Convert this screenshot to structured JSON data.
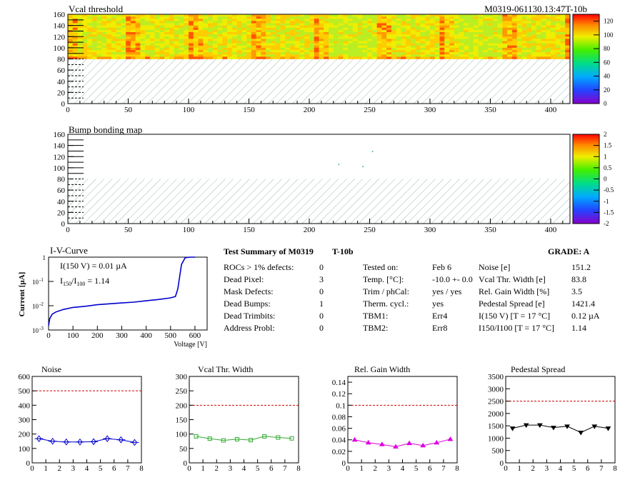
{
  "header": {
    "vcal_title": "Vcal threshold",
    "module_id": "M0319-061130.13:47T-10b",
    "bump_title": "Bump bonding map"
  },
  "maps": {
    "x_ticks": [
      "0",
      "50",
      "100",
      "150",
      "200",
      "250",
      "300",
      "350",
      "400"
    ],
    "y_ticks": [
      "0",
      "20",
      "40",
      "60",
      "80",
      "100",
      "120",
      "140",
      "160"
    ],
    "vcal_palette_ticks": [
      "0",
      "20",
      "40",
      "60",
      "80",
      "100",
      "120"
    ],
    "bump_palette_ticks": [
      "-2",
      "-1.5",
      "-1",
      "-0.5",
      "0",
      "0.5",
      "1",
      "1.5",
      "2"
    ],
    "vcal_map": {
      "xrange": [
        0,
        416
      ],
      "yrange": [
        0,
        160
      ],
      "filled_y": [
        80,
        160
      ],
      "hatched_y": [
        0,
        80
      ],
      "roc_width": 52,
      "zrange": [
        0,
        130
      ]
    },
    "bump_map": {
      "xrange": [
        0,
        416
      ],
      "yrange": [
        0,
        160
      ],
      "filled_y": [
        80,
        160
      ],
      "hatched_y": [
        0,
        80
      ],
      "points": [
        [
          224,
          107
        ],
        [
          244,
          103
        ],
        [
          252,
          130
        ]
      ]
    }
  },
  "iv": {
    "title": "I-V-Curve",
    "i150": "I(150 V) = 0.01 µA",
    "ratio_label": "I",
    "ratio_sub1": "150",
    "ratio_sep": "/I",
    "ratio_sub2": "100",
    "ratio_value": "=  1.14",
    "ylabel": "Current [µA]",
    "xlabel": "Voltage [V]",
    "x_ticks": [
      "0",
      "100",
      "200",
      "300",
      "400",
      "500",
      "600"
    ],
    "y_ticks": [
      "1",
      "10",
      "10",
      "10"
    ],
    "y_exp": [
      "",
      "-1",
      "-2",
      "-3"
    ],
    "chart_data": {
      "type": "line",
      "x": [
        0,
        5,
        15,
        30,
        60,
        100,
        150,
        200,
        250,
        300,
        350,
        400,
        450,
        500,
        520,
        530,
        545,
        560,
        580,
        600
      ],
      "y": [
        0.0015,
        0.003,
        0.0045,
        0.0055,
        0.007,
        0.0085,
        0.0095,
        0.011,
        0.012,
        0.013,
        0.014,
        0.016,
        0.018,
        0.021,
        0.024,
        0.05,
        0.5,
        0.95,
        1,
        1
      ],
      "xlim": [
        0,
        650
      ],
      "ylim": [
        0.001,
        1
      ],
      "yscale": "log"
    }
  },
  "summary": {
    "title": "Test Summary of M0319",
    "tag": "T-10b",
    "grade": "GRADE:  A",
    "left": [
      {
        "label": "ROCs > 1% defects:",
        "value": "0"
      },
      {
        "label": "Dead Pixel:",
        "value": "3"
      },
      {
        "label": "Mask Defects:",
        "value": "0"
      },
      {
        "label": "Dead Bumps:",
        "value": "1"
      },
      {
        "label": "Dead Trimbits:",
        "value": "0"
      },
      {
        "label": "Address Probl:",
        "value": "0"
      }
    ],
    "mid": [
      {
        "label": "Tested on:",
        "value": "Feb 6"
      },
      {
        "label": "Temp. [°C]:",
        "value": "-10.0 +- 0.0"
      },
      {
        "label": "Trim / phCal:",
        "value": "yes / yes"
      },
      {
        "label": "Therm. cycl.:",
        "value": "yes"
      },
      {
        "label": "TBM1:",
        "value": "Err4"
      },
      {
        "label": "TBM2:",
        "value": "Err8"
      }
    ],
    "right": [
      {
        "label": "Noise [e]",
        "value": "151.2"
      },
      {
        "label": "Vcal Thr. Width [e]",
        "value": "83.8"
      },
      {
        "label": "Rel. Gain Width [%]",
        "value": "3.5"
      },
      {
        "label": "Pedestal Spread [e]",
        "value": "1421.4"
      },
      {
        "label": "I(150 V) [T = 17 °C]",
        "value": "0.12 µA"
      },
      {
        "label": "I150/I100  [T = 17 °C]",
        "value": "1.14"
      }
    ]
  },
  "chart_data": [
    {
      "type": "line",
      "title": "Noise",
      "x": [
        0.5,
        1.5,
        2.5,
        3.5,
        4.5,
        5.5,
        6.5,
        7.5
      ],
      "values": [
        168,
        150,
        145,
        145,
        147,
        168,
        160,
        142
      ],
      "xlim": [
        0,
        8
      ],
      "ylim": [
        0,
        600
      ],
      "threshold": 500,
      "color": "#0000cc",
      "marker": "diamond",
      "yticks": [
        "0",
        "100",
        "200",
        "300",
        "400",
        "500",
        "600"
      ]
    },
    {
      "type": "line",
      "title": "Vcal Thr. Width",
      "x": [
        0.5,
        1.5,
        2.5,
        3.5,
        4.5,
        5.5,
        6.5,
        7.5
      ],
      "values": [
        92,
        84,
        78,
        82,
        79,
        92,
        88,
        85
      ],
      "xlim": [
        0,
        8
      ],
      "ylim": [
        0,
        300
      ],
      "threshold": 200,
      "color": "#33aa33",
      "marker": "square",
      "yticks": [
        "0",
        "50",
        "100",
        "150",
        "200",
        "250",
        "300"
      ]
    },
    {
      "type": "line",
      "title": "Rel. Gain Width",
      "x": [
        0.5,
        1.5,
        2.5,
        3.5,
        4.5,
        5.5,
        6.5,
        7.5
      ],
      "values": [
        0.04,
        0.035,
        0.032,
        0.028,
        0.034,
        0.03,
        0.035,
        0.041
      ],
      "xlim": [
        0,
        8
      ],
      "ylim": [
        0,
        0.15
      ],
      "threshold": 0.1,
      "color": "#dd00dd",
      "marker": "triangle",
      "yticks": [
        "0",
        "0.02",
        "0.04",
        "0.06",
        "0.08",
        "0.1",
        "0.12",
        "0.14"
      ]
    },
    {
      "type": "line",
      "title": "Pedestal Spread",
      "x": [
        0.5,
        1.5,
        2.5,
        3.5,
        4.5,
        5.5,
        6.5,
        7.5
      ],
      "values": [
        1400,
        1530,
        1530,
        1430,
        1480,
        1230,
        1480,
        1400
      ],
      "xlim": [
        0,
        8
      ],
      "ylim": [
        0,
        3500
      ],
      "threshold": 2500,
      "color": "#000000",
      "marker": "invtriangle",
      "yticks": [
        "0",
        "500",
        "1000",
        "1500",
        "2000",
        "2500",
        "3000",
        "3500"
      ]
    }
  ],
  "bottom_x_ticks": [
    "0",
    "1",
    "2",
    "3",
    "4",
    "5",
    "6",
    "7",
    "8"
  ]
}
